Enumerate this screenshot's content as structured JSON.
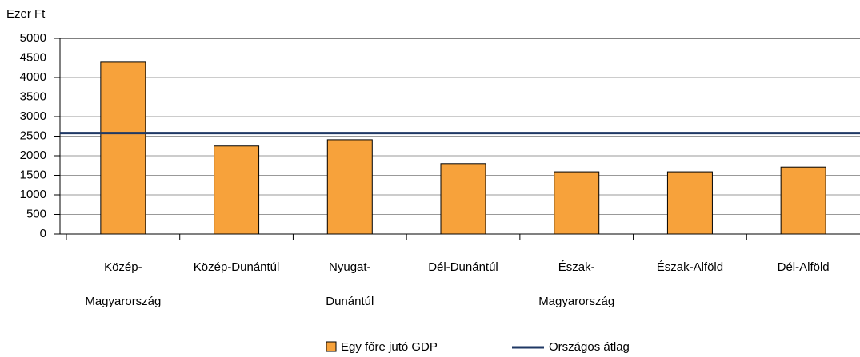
{
  "chart_data": {
    "type": "bar",
    "y_label": "Ezer Ft",
    "categories": [
      [
        "Közép-",
        "Magyarország"
      ],
      [
        "Közép-Dunántúl"
      ],
      [
        "Nyugat-",
        "Dunántúl"
      ],
      [
        "Dél-Dunántúl"
      ],
      [
        "Észak-",
        "Magyarország"
      ],
      [
        "Észak-Alföld"
      ],
      [
        "Dél-Alföld"
      ]
    ],
    "series": [
      {
        "name": "Egy főre jutó GDP",
        "color": "#f7a23b",
        "values": [
          4390,
          2250,
          2410,
          1800,
          1590,
          1590,
          1710
        ]
      }
    ],
    "reference_line": {
      "name": "Országos átlag",
      "color": "#1f3864",
      "value": 2580
    },
    "ylim": [
      0,
      5000
    ],
    "yticks": [
      0,
      500,
      1000,
      1500,
      2000,
      2500,
      3000,
      3500,
      4000,
      4500,
      5000
    ],
    "grid": true,
    "legend": "bottom"
  }
}
